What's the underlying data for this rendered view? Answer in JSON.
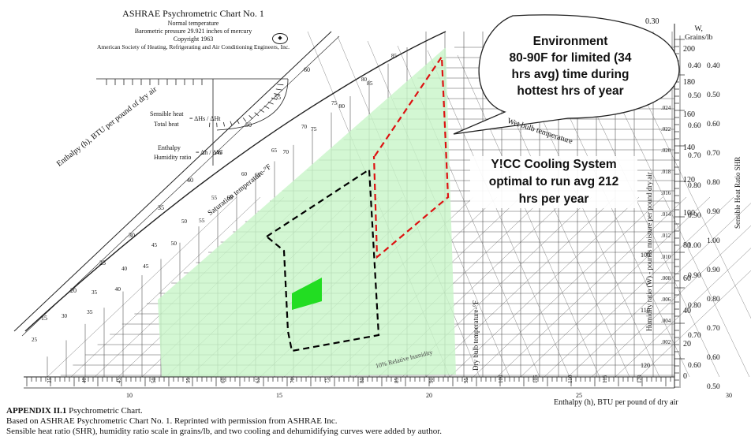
{
  "header": {
    "title": "ASHRAE  Psychrometric Chart No. 1",
    "line1": "Normal temperature",
    "line2": "Barometric pressure 29.921 inches of mercury",
    "line3": "Copyright 1963",
    "line4": "American Society of Heating, Refrigerating and Air Conditioning Engineers, Inc."
  },
  "protractor": {
    "sensible": "Sensible heat",
    "total": "Total heat",
    "ratio1": "= ΔHs / ΔHt",
    "enthalpy": "Enthalpy",
    "humidity": "Humidity ratio",
    "ratio2": "= Δh / ΔW"
  },
  "axes": {
    "enthalpy_left": "Enthalpy (h), BTU per pound of dry air",
    "enthalpy_bottom": "Enthalpy (h), BTU per pound of dry air",
    "saturation": "Saturation temperature-°F",
    "wet_bulb": "Wet bulb temperature",
    "dry_bulb": "Dry bulb temperature-°F",
    "humidity_ratio": "Humidity ratio (W) - pounds moisture per pound dry air",
    "shr": "Sensible Heat Ratio SHR",
    "grains": "W,\nGrains/lb",
    "rel_humidity": "10% Relative humidity",
    "top_value": "0.30"
  },
  "scales": {
    "grains": [
      "200",
      "180",
      "160",
      "140",
      "120",
      "100",
      "80",
      "60",
      "40",
      "20",
      "0"
    ],
    "shr_inner": [
      "0.40",
      "0.50",
      "0.60",
      "0.70",
      "0.80",
      "0.90",
      "1.00",
      "0.90",
      "0.80",
      "0.70",
      "0.60"
    ],
    "shr_outer": [
      "0.40",
      "0.50",
      "0.60",
      "0.70",
      "0.80",
      "0.90",
      "1.00",
      "0.90",
      "0.80",
      "0.70",
      "0.60",
      "0.50"
    ],
    "humidity": [
      ".024",
      ".022",
      ".020",
      ".018",
      ".016",
      ".014",
      ".012",
      ".010",
      ".008",
      ".006",
      ".004",
      ".002"
    ],
    "enthalpy_left_ticks": [
      "15",
      "20",
      "25",
      "30",
      "35",
      "40",
      "45",
      "50",
      "55",
      "60"
    ],
    "saturation_ticks": [
      "35",
      "40",
      "45",
      "50",
      "55",
      "60",
      "65",
      "70",
      "75",
      "80",
      "85"
    ],
    "dry_bulb_ticks": [
      "35",
      "40",
      "45",
      "50",
      "55",
      "60",
      "65",
      "70",
      "75",
      "80",
      "85",
      "90",
      "95",
      "100",
      "105",
      "110",
      "115",
      "120"
    ],
    "enthalpy_bottom_ticks": [
      "10",
      "15",
      "20",
      "25",
      "30"
    ],
    "wet_bulb_ticks": [
      "25",
      "30",
      "35",
      "40",
      "45",
      "50",
      "55",
      "60",
      "65",
      "70",
      "75",
      "80",
      "85"
    ],
    "db_right": [
      "100",
      "110",
      "120"
    ]
  },
  "callouts": {
    "environment": "Environment\n80-90F for limited (34\nhrs avg) time during\nhottest hrs of year",
    "ycc": "Y!CC Cooling System\noptimal to run avg 212\nhrs per year"
  },
  "caption": {
    "line1_bold": "APPENDIX II.1",
    "line1_rest": "  Psychrometric Chart.",
    "line2": "Based on ASHRAE Psychrometric Chart No. 1. Reprinted with permission from ASHRAE Inc.",
    "line3": "Sensible heat ratio (SHR), humidity ratio scale in grains/lb, and two cooling and dehumidifying curves were added by author."
  },
  "colors": {
    "green_fill": "#c8f5c8",
    "bright_green": "#22dd22",
    "red_dash": "#dd1111",
    "black_dash": "#000000"
  }
}
